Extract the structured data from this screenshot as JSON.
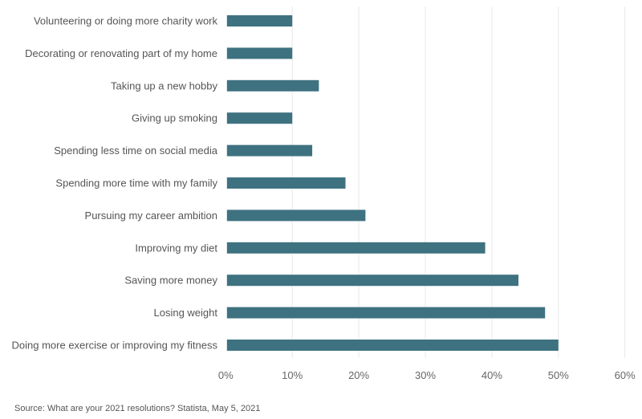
{
  "chart_data": {
    "type": "bar",
    "orientation": "horizontal",
    "title": "",
    "xlabel": "",
    "ylabel": "",
    "categories": [
      "Volunteering or doing more charity work",
      "Decorating or renovating part of my home",
      "Taking up a new hobby",
      "Giving up smoking",
      "Spending less time on social media",
      "Spending more time with my family",
      "Pursuing my career ambition",
      "Improving my diet",
      "Saving more money",
      "Losing weight",
      "Doing more exercise or improving my fitness"
    ],
    "values": [
      10,
      10,
      14,
      10,
      13,
      18,
      21,
      39,
      44,
      48,
      50
    ],
    "xlim": [
      0,
      60
    ],
    "xticks": [
      "0%",
      "10%",
      "20%",
      "30%",
      "40%",
      "50%",
      "60%"
    ],
    "grid": true,
    "bar_color": "#3e7280"
  },
  "source": "Source:  What are your 2021 resolutions? Statista, May 5, 2021"
}
